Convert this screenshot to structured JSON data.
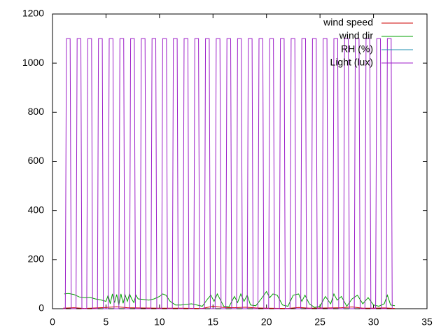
{
  "chart_data": {
    "type": "line",
    "xlim": [
      0,
      35
    ],
    "xticks": [
      0,
      5,
      10,
      15,
      20,
      25,
      30,
      35
    ],
    "ylim": [
      0,
      1200
    ],
    "yticks": [
      0,
      200,
      400,
      600,
      800,
      1000,
      1200
    ],
    "legend": "top-right",
    "series": [
      {
        "name": "wind speed",
        "color": "#cc0000",
        "x": [
          1,
          2,
          3,
          5,
          6,
          7,
          8,
          10,
          12,
          14,
          15,
          16,
          17,
          18,
          19,
          20,
          22,
          23,
          24,
          26,
          27,
          28,
          29,
          30,
          31,
          32
        ],
        "values": [
          2,
          4,
          1,
          5,
          8,
          4,
          3,
          2,
          2,
          1,
          10,
          5,
          4,
          6,
          3,
          2,
          1,
          5,
          2,
          3,
          4,
          7,
          2,
          2,
          3,
          1
        ]
      },
      {
        "name": "wind dir",
        "color": "#00a000",
        "x": [
          1.1,
          1.5,
          2.0,
          2.5,
          3.0,
          3.5,
          4.0,
          4.5,
          5.0,
          5.2,
          5.4,
          5.6,
          5.8,
          6.0,
          6.2,
          6.4,
          6.6,
          6.8,
          7.0,
          7.2,
          7.4,
          7.6,
          7.8,
          8.0,
          8.5,
          9.0,
          9.5,
          10.0,
          10.3,
          10.6,
          11.0,
          11.5,
          12.0,
          12.5,
          13.0,
          13.5,
          14.0,
          14.5,
          14.8,
          15.1,
          15.4,
          15.7,
          16.0,
          16.5,
          17.0,
          17.3,
          17.6,
          17.9,
          18.2,
          18.5,
          19.0,
          19.5,
          20.0,
          20.3,
          20.6,
          21.0,
          21.5,
          22.0,
          22.5,
          23.0,
          23.3,
          23.6,
          24.0,
          24.5,
          25.0,
          25.5,
          26.0,
          26.3,
          26.6,
          27.0,
          27.5,
          28.0,
          28.5,
          29.0,
          29.5,
          30.0,
          30.5,
          31.0,
          31.3,
          31.6,
          32.0
        ],
        "values": [
          60,
          62,
          58,
          48,
          45,
          46,
          40,
          36,
          30,
          55,
          20,
          60,
          25,
          58,
          15,
          60,
          22,
          55,
          30,
          60,
          40,
          25,
          55,
          40,
          38,
          35,
          40,
          50,
          60,
          55,
          30,
          15,
          15,
          18,
          20,
          15,
          10,
          40,
          55,
          30,
          60,
          35,
          10,
          8,
          50,
          25,
          60,
          30,
          55,
          15,
          12,
          40,
          70,
          45,
          60,
          55,
          15,
          10,
          55,
          60,
          30,
          55,
          20,
          5,
          10,
          50,
          20,
          60,
          35,
          50,
          10,
          40,
          55,
          20,
          45,
          15,
          10,
          20,
          55,
          15,
          12
        ]
      },
      {
        "name": "RH (%)",
        "color": "#1f8fb0",
        "x": [],
        "values": []
      },
      {
        "name": "Light (lux)",
        "color": "#9c1ec8",
        "x": [
          1.0,
          1.2,
          1.3,
          1.65,
          1.75,
          2.2,
          2.3,
          2.65,
          2.75,
          3.2,
          3.3,
          3.65,
          3.75,
          4.2,
          4.3,
          4.65,
          4.75,
          5.2,
          5.3,
          5.65,
          5.75,
          6.2,
          6.3,
          6.65,
          6.75,
          7.2,
          7.3,
          7.65,
          7.75,
          8.2,
          8.3,
          8.65,
          8.75,
          9.2,
          9.3,
          9.65,
          9.75,
          10.2,
          10.3,
          10.65,
          10.75,
          11.2,
          11.3,
          11.65,
          11.75,
          12.2,
          12.3,
          12.65,
          12.75,
          13.2,
          13.3,
          13.65,
          13.75,
          14.2,
          14.3,
          14.65,
          14.75,
          15.2,
          15.3,
          15.65,
          15.75,
          16.2,
          16.3,
          16.65,
          16.75,
          17.2,
          17.3,
          17.65,
          17.75,
          18.2,
          18.3,
          18.65,
          18.75,
          19.2,
          19.3,
          19.65,
          19.75,
          20.2,
          20.3,
          20.65,
          20.75,
          21.2,
          21.3,
          21.65,
          21.75,
          22.2,
          22.3,
          22.65,
          22.75,
          23.2,
          23.3,
          23.65,
          23.75,
          24.2,
          24.3,
          24.65,
          24.75,
          25.2,
          25.3,
          25.65,
          25.75,
          26.2,
          26.3,
          26.65,
          26.75,
          27.2,
          27.3,
          27.65,
          27.75,
          28.2,
          28.3,
          28.65,
          28.75,
          29.2,
          29.3,
          29.65,
          29.75,
          30.2,
          30.3,
          30.65,
          30.75,
          31.2,
          31.3,
          31.65,
          31.75
        ],
        "values": [
          0,
          0,
          1100,
          1100,
          0,
          0,
          1100,
          1100,
          0,
          0,
          1100,
          1100,
          0,
          0,
          1100,
          1100,
          0,
          0,
          1100,
          1100,
          0,
          0,
          1100,
          1100,
          0,
          0,
          1100,
          1100,
          0,
          0,
          1100,
          1100,
          0,
          0,
          1100,
          1100,
          0,
          0,
          1100,
          1100,
          0,
          0,
          1100,
          1100,
          0,
          0,
          1100,
          1100,
          0,
          0,
          1100,
          1100,
          0,
          0,
          1100,
          1100,
          0,
          0,
          1100,
          1100,
          0,
          0,
          1100,
          1100,
          0,
          0,
          1100,
          1100,
          0,
          0,
          1100,
          1100,
          0,
          0,
          1100,
          1100,
          0,
          0,
          1100,
          1100,
          0,
          0,
          1100,
          1100,
          0,
          0,
          1100,
          1100,
          0,
          0,
          1100,
          1100,
          0,
          0,
          1100,
          1100,
          0,
          0,
          1100,
          1100,
          0,
          0,
          1100,
          1100,
          0,
          0,
          1100,
          1100,
          0,
          0,
          1100,
          1100,
          0,
          0,
          1100,
          1100,
          0,
          0,
          1100,
          1100,
          0,
          0,
          1100,
          1100,
          0
        ]
      }
    ]
  }
}
